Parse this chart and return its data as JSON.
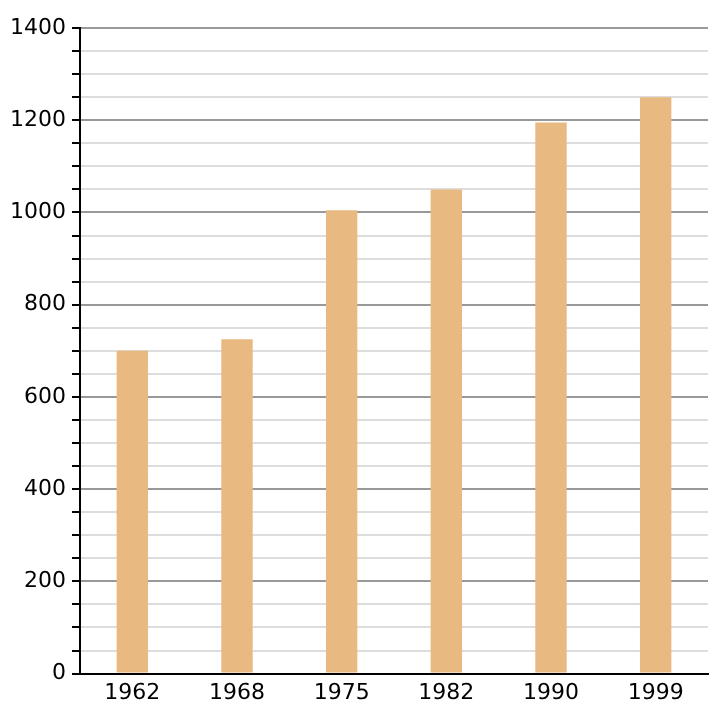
{
  "chart_data": {
    "type": "bar",
    "categories": [
      "1962",
      "1968",
      "1975",
      "1982",
      "1990",
      "1999"
    ],
    "values": [
      700,
      725,
      1005,
      1050,
      1195,
      1250
    ],
    "color": "#e8b980",
    "ylim": [
      0,
      1400
    ],
    "yticks": [
      0,
      {
        "value": 50,
        "label": null
      },
      {
        "value": 100,
        "label": null
      },
      {
        "value": 150,
        "label": null
      },
      200,
      {
        "value": 250,
        "label": null
      },
      {
        "value": 300,
        "label": null
      },
      {
        "value": 350,
        "label": null
      },
      400,
      {
        "value": 450,
        "label": null
      },
      {
        "value": 500,
        "label": null
      },
      {
        "value": 550,
        "label": null
      },
      600,
      {
        "value": 650,
        "label": null
      },
      {
        "value": 700,
        "label": null
      },
      {
        "value": 750,
        "label": null
      },
      800,
      {
        "value": 850,
        "label": null
      },
      {
        "value": 900,
        "label": null
      },
      {
        "value": 950,
        "label": null
      },
      1000,
      {
        "value": 1050,
        "label": null
      },
      {
        "value": 1100,
        "label": null
      },
      {
        "value": 1150,
        "label": null
      },
      1200,
      {
        "value": 1250,
        "label": null
      },
      {
        "value": 1300,
        "label": null
      },
      {
        "value": 1350,
        "label": null
      },
      1400
    ],
    "grid": "y",
    "legend": false
  }
}
